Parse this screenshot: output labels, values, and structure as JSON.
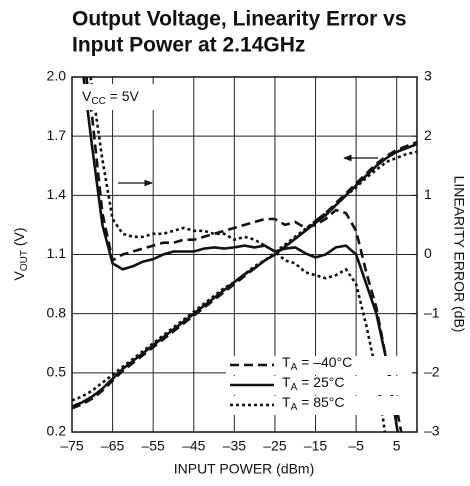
{
  "chart_data": {
    "type": "line",
    "title": [
      "Output Voltage, Linearity Error vs",
      "Input Power at 2.14GHz"
    ],
    "x_label": "INPUT POWER (dBm)",
    "y_label": "VOUT (V)",
    "y2_label": "LINEARITY ERROR (dB)",
    "annotation": "VCC = 5V",
    "grid": true,
    "legend": "lower right",
    "xlim": [
      -75,
      10
    ],
    "xticks": [
      {
        "value": -75,
        "label": "–75"
      },
      {
        "value": -65,
        "label": "–65"
      },
      {
        "value": -55,
        "label": "–55"
      },
      {
        "value": -45,
        "label": "–45"
      },
      {
        "value": -35,
        "label": "–35"
      },
      {
        "value": -25,
        "label": "–25"
      },
      {
        "value": -15,
        "label": "–15"
      },
      {
        "value": -5,
        "label": "–5"
      },
      5
    ],
    "ylim": [
      0.2,
      2.0
    ],
    "yticks": [
      0.2,
      0.5,
      0.8,
      1.1,
      1.4,
      1.7,
      {
        "value": 2.0,
        "label": "2.0"
      }
    ],
    "y2lim": [
      -3,
      3
    ],
    "y2ticks": [
      {
        "value": -3,
        "label": "–3"
      },
      {
        "value": -2,
        "label": "–2"
      },
      {
        "value": -1,
        "label": "–1"
      },
      0,
      1,
      2,
      3
    ],
    "x": [
      -75,
      -72.5,
      -70,
      -67.5,
      -65,
      -62.5,
      -60,
      -57.5,
      -55,
      -52.5,
      -50,
      -47.5,
      -45,
      -42.5,
      -40,
      -37.5,
      -35,
      -32.5,
      -30,
      -27.5,
      -25,
      -22.5,
      -20,
      -17.5,
      -15,
      -12.5,
      -10,
      -7.5,
      -5,
      -2.5,
      0,
      2.5,
      5,
      7.5,
      10
    ],
    "series": [
      {
        "name": "TA = –40°C",
        "color": "#111111",
        "dash": "9,5",
        "values": [
          0.32,
          0.34,
          0.37,
          0.41,
          0.46,
          0.51,
          0.55,
          0.59,
          0.63,
          0.67,
          0.71,
          0.75,
          0.79,
          0.83,
          0.87,
          0.91,
          0.95,
          0.99,
          1.03,
          1.07,
          1.1,
          1.14,
          1.18,
          1.22,
          1.27,
          1.31,
          1.36,
          1.41,
          1.46,
          1.51,
          1.56,
          1.6,
          1.63,
          1.65,
          1.67
        ],
        "error_values": [
          null,
          3.5,
          2.3,
          0.7,
          -0.1,
          0,
          0.05,
          0.1,
          0.15,
          0.2,
          0.2,
          0.25,
          0.25,
          0.3,
          0.35,
          0.4,
          0.45,
          0.5,
          0.55,
          0.6,
          0.6,
          0.5,
          0.55,
          0.45,
          0.5,
          0.6,
          0.75,
          0.7,
          0.4,
          -0.3,
          -0.9,
          -1.8,
          -2.6,
          -3.5,
          null
        ]
      },
      {
        "name": "TA = 25°C",
        "color": "#111111",
        "dash": "none",
        "values": [
          0.33,
          0.35,
          0.38,
          0.42,
          0.47,
          0.52,
          0.56,
          0.6,
          0.64,
          0.68,
          0.72,
          0.76,
          0.8,
          0.84,
          0.88,
          0.92,
          0.96,
          1.0,
          1.03,
          1.07,
          1.1,
          1.14,
          1.18,
          1.22,
          1.26,
          1.3,
          1.35,
          1.4,
          1.45,
          1.5,
          1.55,
          1.59,
          1.62,
          1.64,
          1.66
        ],
        "error_values": [
          null,
          3.2,
          1.8,
          0.5,
          -0.15,
          -0.25,
          -0.2,
          -0.12,
          -0.08,
          0,
          0.05,
          0.05,
          0.05,
          0.1,
          0.12,
          0.1,
          0.12,
          0.15,
          0.12,
          0.15,
          0.05,
          0.1,
          0.12,
          0.02,
          -0.05,
          0,
          0.12,
          0.15,
          0,
          -0.5,
          -1,
          -1.8,
          -2.9,
          -4,
          null
        ]
      },
      {
        "name": "TA = 85°C",
        "color": "#111111",
        "dash": "3,3",
        "values": [
          0.36,
          0.38,
          0.41,
          0.45,
          0.49,
          0.53,
          0.57,
          0.61,
          0.65,
          0.69,
          0.73,
          0.77,
          0.81,
          0.85,
          0.89,
          0.93,
          0.96,
          1.0,
          1.04,
          1.07,
          1.11,
          1.15,
          1.19,
          1.23,
          1.27,
          1.31,
          1.35,
          1.4,
          1.44,
          1.49,
          1.53,
          1.57,
          1.59,
          1.61,
          1.62
        ],
        "error_values": [
          null,
          4,
          2.8,
          1.6,
          0.6,
          0.35,
          0.3,
          0.3,
          0.35,
          0.35,
          0.4,
          0.45,
          0.4,
          0.4,
          0.35,
          0.35,
          0.25,
          0.3,
          0.25,
          0.15,
          0.05,
          -0.1,
          -0.15,
          -0.3,
          -0.35,
          -0.4,
          -0.35,
          -0.25,
          -0.5,
          -1.2,
          -2,
          -3.2,
          null,
          null,
          null
        ]
      }
    ]
  }
}
